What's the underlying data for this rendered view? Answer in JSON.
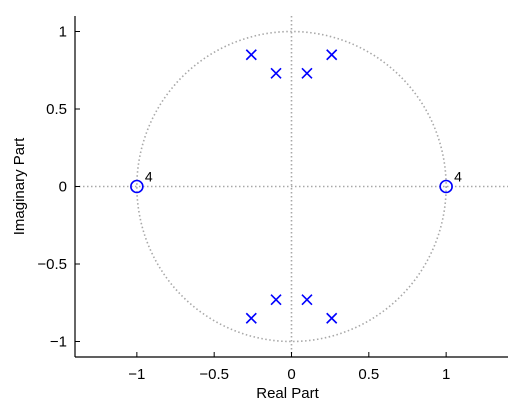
{
  "chart_data": {
    "type": "scatter",
    "title": "",
    "xlabel": "Real Part",
    "ylabel": "Imaginary Part",
    "xlim": [
      -1.4,
      1.4
    ],
    "ylim": [
      -1.1,
      1.1
    ],
    "xticks": [
      -1,
      -0.5,
      0,
      0.5,
      1
    ],
    "xtick_labels": [
      "−1",
      "−0.5",
      "0",
      "0.5",
      "1"
    ],
    "yticks": [
      -1,
      -0.5,
      0,
      0.5,
      1
    ],
    "ytick_labels": [
      "−1",
      "−0.5",
      "0",
      "0.5",
      "1"
    ],
    "grid": false,
    "unit_circle": true,
    "zeros": [
      {
        "x": -1,
        "y": 0,
        "multiplicity": "4"
      },
      {
        "x": 1,
        "y": 0,
        "multiplicity": "4"
      }
    ],
    "poles": [
      {
        "x": -0.26,
        "y": 0.85
      },
      {
        "x": 0.26,
        "y": 0.85
      },
      {
        "x": -0.1,
        "y": 0.73
      },
      {
        "x": 0.1,
        "y": 0.73
      },
      {
        "x": -0.1,
        "y": -0.73
      },
      {
        "x": 0.1,
        "y": -0.73
      },
      {
        "x": -0.26,
        "y": -0.85
      },
      {
        "x": 0.26,
        "y": -0.85
      }
    ],
    "colors": {
      "markers": "#0000ff",
      "dotted": "#a8a8a8",
      "axes": "#000000"
    }
  }
}
